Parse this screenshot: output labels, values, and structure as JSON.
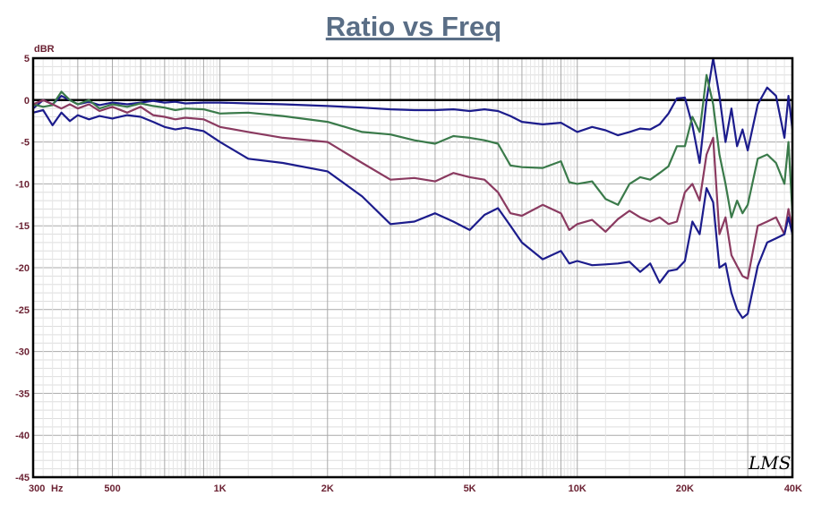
{
  "chart_data": {
    "type": "line",
    "title": "Ratio vs Freq",
    "ylabel": "dBR",
    "xlabel": "",
    "x_scale": "log",
    "xlim": [
      300,
      40000
    ],
    "ylim": [
      -45,
      5
    ],
    "grid": true,
    "legend": "none",
    "watermark": "LMS",
    "x_ticks": [
      {
        "value": 300,
        "label": "300"
      },
      {
        "value": 500,
        "label": "500"
      },
      {
        "value": 1000,
        "label": "1K"
      },
      {
        "value": 2000,
        "label": "2K"
      },
      {
        "value": 5000,
        "label": "5K"
      },
      {
        "value": 10000,
        "label": "10K"
      },
      {
        "value": 20000,
        "label": "20K"
      },
      {
        "value": 40000,
        "label": "40K"
      }
    ],
    "x_unit": "Hz",
    "y_ticks": [
      5,
      0,
      -5,
      -10,
      -15,
      -20,
      -25,
      -30,
      -35,
      -40,
      -45
    ],
    "reference_line": 0,
    "series": [
      {
        "color": "#1c1c8c",
        "points": [
          [
            300,
            -1
          ],
          [
            320,
            0
          ],
          [
            340,
            -0.5
          ],
          [
            360,
            0.5
          ],
          [
            380,
            0
          ],
          [
            400,
            -0.5
          ],
          [
            430,
            -0.2
          ],
          [
            460,
            -0.6
          ],
          [
            500,
            -0.3
          ],
          [
            550,
            -0.5
          ],
          [
            600,
            -0.3
          ],
          [
            650,
            -0.1
          ],
          [
            700,
            -0.3
          ],
          [
            750,
            -0.2
          ],
          [
            800,
            -0.4
          ],
          [
            900,
            -0.3
          ],
          [
            1000,
            -0.3
          ],
          [
            1200,
            -0.4
          ],
          [
            1500,
            -0.5
          ],
          [
            2000,
            -0.7
          ],
          [
            2500,
            -0.9
          ],
          [
            3000,
            -1.1
          ],
          [
            3500,
            -1.2
          ],
          [
            4000,
            -1.2
          ],
          [
            4500,
            -1.1
          ],
          [
            5000,
            -1.3
          ],
          [
            5500,
            -1.1
          ],
          [
            6000,
            -1.3
          ],
          [
            6500,
            -1.9
          ],
          [
            7000,
            -2.6
          ],
          [
            8000,
            -2.9
          ],
          [
            9000,
            -2.7
          ],
          [
            10000,
            -3.8
          ],
          [
            11000,
            -3.2
          ],
          [
            12000,
            -3.6
          ],
          [
            13000,
            -4.2
          ],
          [
            14000,
            -3.8
          ],
          [
            15000,
            -3.4
          ],
          [
            16000,
            -3.5
          ],
          [
            17000,
            -2.9
          ],
          [
            18000,
            -1.6
          ],
          [
            19000,
            0.2
          ],
          [
            20000,
            0.3
          ],
          [
            21000,
            -3
          ],
          [
            22000,
            -7.5
          ],
          [
            23000,
            0
          ],
          [
            24000,
            5
          ],
          [
            25000,
            0.5
          ],
          [
            26000,
            -5
          ],
          [
            27000,
            -1
          ],
          [
            28000,
            -5.5
          ],
          [
            29000,
            -3.5
          ],
          [
            30000,
            -6
          ],
          [
            32000,
            -0.5
          ],
          [
            34000,
            1.5
          ],
          [
            36000,
            0.5
          ],
          [
            38000,
            -4.5
          ],
          [
            39000,
            0.5
          ],
          [
            40000,
            -3.5
          ]
        ]
      },
      {
        "color": "#3a7a4a",
        "points": [
          [
            300,
            -0.5
          ],
          [
            320,
            -0.8
          ],
          [
            340,
            -0.6
          ],
          [
            360,
            1
          ],
          [
            380,
            0
          ],
          [
            400,
            -0.5
          ],
          [
            430,
            0
          ],
          [
            460,
            -1
          ],
          [
            500,
            -0.5
          ],
          [
            550,
            -0.8
          ],
          [
            600,
            -0.4
          ],
          [
            650,
            -0.7
          ],
          [
            700,
            -0.9
          ],
          [
            750,
            -1.2
          ],
          [
            800,
            -1
          ],
          [
            900,
            -1.1
          ],
          [
            1000,
            -1.6
          ],
          [
            1200,
            -1.5
          ],
          [
            1500,
            -1.9
          ],
          [
            2000,
            -2.6
          ],
          [
            2500,
            -3.8
          ],
          [
            3000,
            -4.1
          ],
          [
            3500,
            -4.8
          ],
          [
            4000,
            -5.2
          ],
          [
            4500,
            -4.3
          ],
          [
            5000,
            -4.5
          ],
          [
            5500,
            -4.8
          ],
          [
            6000,
            -5.2
          ],
          [
            6500,
            -7.8
          ],
          [
            7000,
            -8
          ],
          [
            8000,
            -8.1
          ],
          [
            9000,
            -7.3
          ],
          [
            9500,
            -9.8
          ],
          [
            10000,
            -10
          ],
          [
            11000,
            -9.7
          ],
          [
            12000,
            -11.8
          ],
          [
            13000,
            -12.5
          ],
          [
            14000,
            -10
          ],
          [
            15000,
            -9.2
          ],
          [
            16000,
            -9.5
          ],
          [
            17000,
            -8.7
          ],
          [
            18000,
            -7.9
          ],
          [
            19000,
            -5.5
          ],
          [
            20000,
            -5.5
          ],
          [
            21000,
            -2
          ],
          [
            22000,
            -3.8
          ],
          [
            23000,
            3
          ],
          [
            24000,
            -0.5
          ],
          [
            25000,
            -6.5
          ],
          [
            26000,
            -10
          ],
          [
            27000,
            -14
          ],
          [
            28000,
            -12
          ],
          [
            29000,
            -13.5
          ],
          [
            30000,
            -12.5
          ],
          [
            32000,
            -7
          ],
          [
            34000,
            -6.5
          ],
          [
            36000,
            -7.5
          ],
          [
            38000,
            -10
          ],
          [
            39000,
            -5
          ],
          [
            40000,
            -13.5
          ]
        ]
      },
      {
        "color": "#8a3a60",
        "points": [
          [
            300,
            -0.5
          ],
          [
            320,
            0
          ],
          [
            340,
            -0.5
          ],
          [
            360,
            -1
          ],
          [
            380,
            -0.5
          ],
          [
            400,
            -1
          ],
          [
            430,
            -0.5
          ],
          [
            460,
            -1.3
          ],
          [
            500,
            -0.8
          ],
          [
            550,
            -1.5
          ],
          [
            600,
            -0.8
          ],
          [
            650,
            -1.8
          ],
          [
            700,
            -2
          ],
          [
            750,
            -2.3
          ],
          [
            800,
            -2.1
          ],
          [
            900,
            -2.3
          ],
          [
            1000,
            -3.2
          ],
          [
            1200,
            -3.8
          ],
          [
            1500,
            -4.5
          ],
          [
            2000,
            -5
          ],
          [
            2500,
            -7.5
          ],
          [
            3000,
            -9.5
          ],
          [
            3500,
            -9.3
          ],
          [
            4000,
            -9.7
          ],
          [
            4500,
            -8.7
          ],
          [
            5000,
            -9.2
          ],
          [
            5500,
            -9.5
          ],
          [
            6000,
            -11
          ],
          [
            6500,
            -13.5
          ],
          [
            7000,
            -13.8
          ],
          [
            8000,
            -12.5
          ],
          [
            9000,
            -13.5
          ],
          [
            9500,
            -15.5
          ],
          [
            10000,
            -14.8
          ],
          [
            11000,
            -14.3
          ],
          [
            12000,
            -15.7
          ],
          [
            13000,
            -14.2
          ],
          [
            14000,
            -13.2
          ],
          [
            15000,
            -14
          ],
          [
            16000,
            -14.5
          ],
          [
            17000,
            -14
          ],
          [
            18000,
            -14.8
          ],
          [
            19000,
            -14.5
          ],
          [
            20000,
            -11
          ],
          [
            21000,
            -10
          ],
          [
            22000,
            -12
          ],
          [
            23000,
            -6.5
          ],
          [
            24000,
            -4.5
          ],
          [
            25000,
            -16
          ],
          [
            26000,
            -14
          ],
          [
            27000,
            -18.5
          ],
          [
            28000,
            -19.8
          ],
          [
            29000,
            -21
          ],
          [
            30000,
            -21.3
          ],
          [
            32000,
            -15
          ],
          [
            34000,
            -14.5
          ],
          [
            36000,
            -14
          ],
          [
            38000,
            -16
          ],
          [
            39000,
            -13
          ],
          [
            40000,
            -15.5
          ]
        ]
      },
      {
        "color": "#1c1c8c",
        "points": [
          [
            300,
            -1.5
          ],
          [
            320,
            -1.2
          ],
          [
            340,
            -3
          ],
          [
            360,
            -1.5
          ],
          [
            380,
            -2.5
          ],
          [
            400,
            -1.8
          ],
          [
            430,
            -2.3
          ],
          [
            460,
            -1.9
          ],
          [
            500,
            -2.2
          ],
          [
            550,
            -1.8
          ],
          [
            600,
            -2
          ],
          [
            650,
            -2.6
          ],
          [
            700,
            -3.2
          ],
          [
            750,
            -3.5
          ],
          [
            800,
            -3.3
          ],
          [
            900,
            -3.7
          ],
          [
            1000,
            -5
          ],
          [
            1200,
            -7
          ],
          [
            1500,
            -7.5
          ],
          [
            2000,
            -8.5
          ],
          [
            2500,
            -11.5
          ],
          [
            3000,
            -14.8
          ],
          [
            3500,
            -14.5
          ],
          [
            4000,
            -13.5
          ],
          [
            4500,
            -14.5
          ],
          [
            5000,
            -15.5
          ],
          [
            5500,
            -13.7
          ],
          [
            6000,
            -12.9
          ],
          [
            6500,
            -15
          ],
          [
            7000,
            -17
          ],
          [
            8000,
            -19
          ],
          [
            9000,
            -18
          ],
          [
            9500,
            -19.5
          ],
          [
            10000,
            -19.2
          ],
          [
            11000,
            -19.7
          ],
          [
            12000,
            -19.6
          ],
          [
            13000,
            -19.5
          ],
          [
            14000,
            -19.3
          ],
          [
            15000,
            -20.5
          ],
          [
            16000,
            -19.5
          ],
          [
            17000,
            -21.8
          ],
          [
            18000,
            -20.4
          ],
          [
            19000,
            -20.2
          ],
          [
            20000,
            -19.2
          ],
          [
            21000,
            -14.5
          ],
          [
            22000,
            -16
          ],
          [
            23000,
            -10.5
          ],
          [
            24000,
            -12.2
          ],
          [
            25000,
            -20
          ],
          [
            26000,
            -19.5
          ],
          [
            27000,
            -23
          ],
          [
            28000,
            -25
          ],
          [
            29000,
            -26
          ],
          [
            30000,
            -25.5
          ],
          [
            32000,
            -19.8
          ],
          [
            34000,
            -17
          ],
          [
            36000,
            -16.5
          ],
          [
            38000,
            -16
          ],
          [
            39000,
            -14
          ],
          [
            40000,
            -16
          ]
        ]
      }
    ]
  }
}
